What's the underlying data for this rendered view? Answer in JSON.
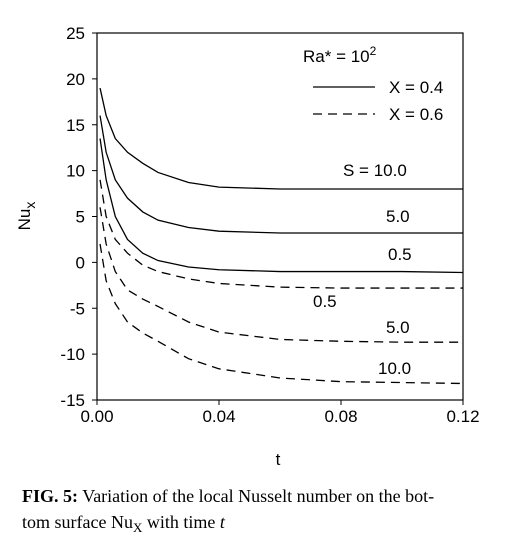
{
  "chart_data": {
    "type": "line",
    "x_label": "t",
    "y_label": "Nu",
    "y_label_sub": "x",
    "xlim": [
      0,
      0.12
    ],
    "xticks": [
      {
        "value": 0,
        "label": "0.00"
      },
      0.04,
      0.08,
      0.12
    ],
    "ylim": [
      -15,
      25
    ],
    "yticks": [
      -15,
      -10,
      -5,
      0,
      5,
      10,
      15,
      20,
      25
    ],
    "legend_title": "Ra* = 10",
    "legend_title_sup": "2",
    "legend": [
      {
        "label": "X = 0.4",
        "dashed": false
      },
      {
        "label": "X = 0.6",
        "dashed": true
      }
    ],
    "x": [
      0.001,
      0.003,
      0.006,
      0.01,
      0.015,
      0.02,
      0.03,
      0.04,
      0.06,
      0.08,
      0.1,
      0.12
    ],
    "series": [
      {
        "label": "S = 10.0",
        "group": 0,
        "values": [
          19,
          16,
          13.5,
          12,
          10.8,
          9.8,
          8.7,
          8.2,
          8.0,
          8.0,
          8.0,
          8.0
        ]
      },
      {
        "label": "5.0",
        "group": 0,
        "values": [
          16,
          12,
          9,
          7,
          5.5,
          4.6,
          3.8,
          3.4,
          3.2,
          3.2,
          3.2,
          3.2
        ]
      },
      {
        "label": "0.5",
        "group": 0,
        "values": [
          13.5,
          9,
          5,
          2.5,
          1,
          0.2,
          -0.5,
          -0.8,
          -1,
          -1,
          -1,
          -1.1
        ]
      },
      {
        "label": "0.5",
        "group": 1,
        "values": [
          9,
          5,
          2.5,
          1,
          -0.3,
          -1,
          -1.8,
          -2.3,
          -2.7,
          -2.8,
          -2.8,
          -2.8
        ]
      },
      {
        "label": "5.0",
        "group": 1,
        "values": [
          6,
          2,
          -1,
          -3,
          -4,
          -4.8,
          -6.5,
          -7.6,
          -8.4,
          -8.6,
          -8.7,
          -8.7
        ]
      },
      {
        "label": "10.0",
        "group": 1,
        "values": [
          2,
          -2,
          -4.5,
          -6.5,
          -7.7,
          -8.6,
          -10.5,
          -11.6,
          -12.6,
          -13,
          -13.1,
          -13.2
        ]
      }
    ]
  },
  "caption": {
    "label": "FIG. 5:",
    "line1": "Variation of the local Nusselt number on the bot-",
    "line2": "tom surface Nu",
    "sub": "X",
    "rest": "with time",
    "var": "t"
  }
}
